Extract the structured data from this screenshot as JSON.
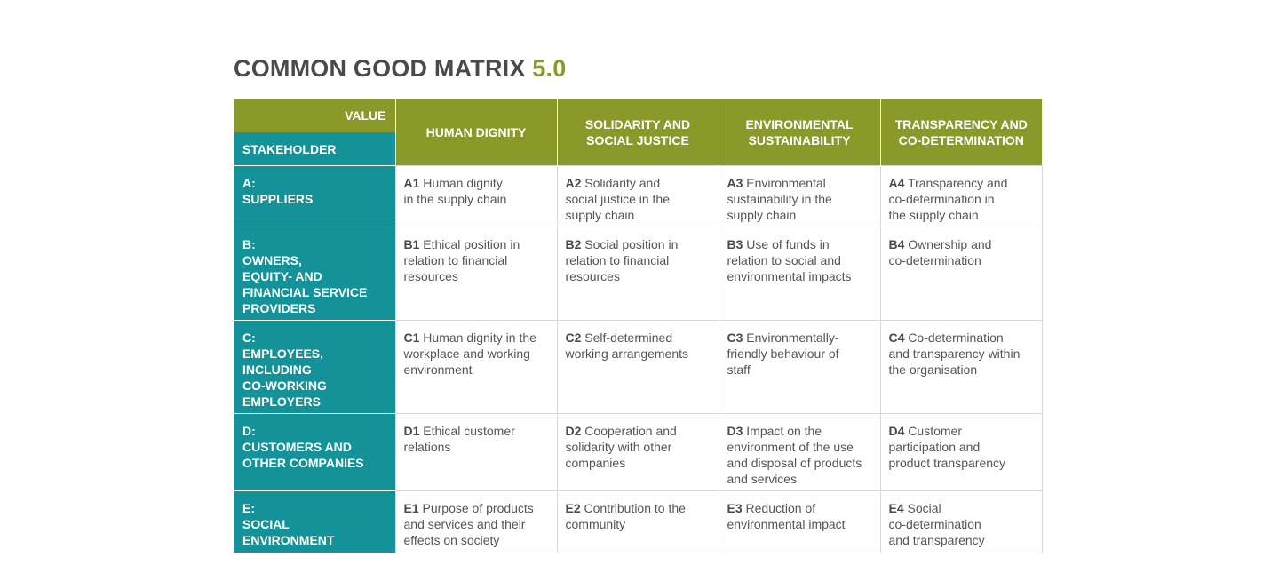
{
  "title": {
    "main": "COMMON GOOD MATRIX",
    "version": "5.0"
  },
  "header": {
    "value_label": "VALUE",
    "stakeholder_label": "STAKEHOLDER",
    "values": [
      {
        "lines": [
          "HUMAN DIGNITY"
        ]
      },
      {
        "lines": [
          "SOLIDARITY AND",
          "SOCIAL JUSTICE"
        ]
      },
      {
        "lines": [
          "ENVIRONMENTAL",
          "SUSTAINABILITY"
        ]
      },
      {
        "lines": [
          "TRANSPARENCY AND",
          "CO-DETERMINATION"
        ]
      }
    ]
  },
  "rows": [
    {
      "stakeholder": [
        "A:",
        "SUPPLIERS"
      ],
      "cells": [
        {
          "code": "A1",
          "lines": [
            "Human dignity",
            "in the supply chain"
          ]
        },
        {
          "code": "A2",
          "lines": [
            "Solidarity and",
            "social justice in the",
            "supply chain"
          ]
        },
        {
          "code": "A3",
          "lines": [
            "Environmental",
            "sustainability in the",
            "supply chain"
          ]
        },
        {
          "code": "A4",
          "lines": [
            "Transparency and",
            "co-determination in",
            "the supply chain"
          ]
        }
      ]
    },
    {
      "stakeholder": [
        "B:",
        "OWNERS,",
        "EQUITY- AND",
        "FINANCIAL SERVICE",
        "PROVIDERS"
      ],
      "cells": [
        {
          "code": "B1",
          "lines": [
            "Ethical position in",
            "relation to financial",
            "resources"
          ]
        },
        {
          "code": "B2",
          "lines": [
            "Social position in",
            "relation to financial",
            "resources"
          ]
        },
        {
          "code": "B3",
          "lines": [
            "Use of funds in",
            "relation to social and",
            "environmental impacts"
          ]
        },
        {
          "code": "B4",
          "lines": [
            "Ownership and",
            "co-determination"
          ]
        }
      ]
    },
    {
      "stakeholder": [
        "C:",
        "EMPLOYEES,",
        "INCLUDING",
        "CO-WORKING",
        "EMPLOYERS"
      ],
      "cells": [
        {
          "code": "C1",
          "lines": [
            "Human dignity in the",
            "workplace and working",
            "environment"
          ]
        },
        {
          "code": "C2",
          "lines": [
            "Self-determined",
            "working arrangements"
          ]
        },
        {
          "code": "C3",
          "lines": [
            "Environmentally-",
            "friendly behaviour of",
            "staff"
          ]
        },
        {
          "code": "C4",
          "lines": [
            "Co-determination",
            "and transparency within",
            "the organisation"
          ]
        }
      ]
    },
    {
      "stakeholder": [
        "D:",
        "CUSTOMERS AND",
        "OTHER COMPANIES"
      ],
      "cells": [
        {
          "code": "D1",
          "lines": [
            "Ethical customer",
            "relations"
          ]
        },
        {
          "code": "D2",
          "lines": [
            "Cooperation and",
            "solidarity with other",
            "companies"
          ]
        },
        {
          "code": "D3",
          "lines": [
            "Impact on the",
            "environment of the use",
            "and disposal of products",
            "and services"
          ]
        },
        {
          "code": "D4",
          "lines": [
            "Customer",
            "participation and",
            "product transparency"
          ]
        }
      ]
    },
    {
      "stakeholder": [
        "E:",
        "SOCIAL",
        "ENVIRONMENT"
      ],
      "cells": [
        {
          "code": "E1",
          "lines": [
            "Purpose of products",
            "and services and their",
            "effects on society"
          ]
        },
        {
          "code": "E2",
          "lines": [
            "Contribution to the",
            "community"
          ]
        },
        {
          "code": "E3",
          "lines": [
            "Reduction of",
            "environmental impact"
          ]
        },
        {
          "code": "E4",
          "lines": [
            "Social",
            "co-determination",
            "and transparency"
          ]
        }
      ]
    }
  ]
}
